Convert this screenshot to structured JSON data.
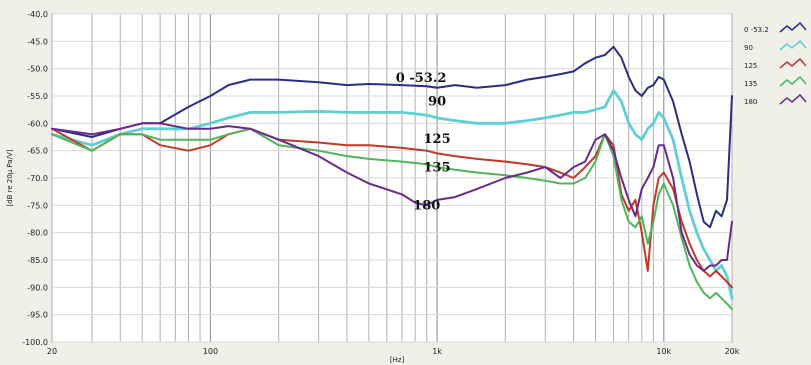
{
  "chart_data": {
    "type": "line",
    "xlabel": "[Hz]",
    "ylabel": "[dB re 20μ Pa/V]",
    "x_scale": "log",
    "xlim": [
      20,
      20000
    ],
    "ylim": [
      -100,
      -40
    ],
    "x_ticks": [
      {
        "value": 20,
        "label": "20"
      },
      {
        "value": 100,
        "label": "100"
      },
      {
        "value": 1000,
        "label": "1k"
      },
      {
        "value": 10000,
        "label": "10k"
      },
      {
        "value": 20000,
        "label": "20k"
      }
    ],
    "y_ticks": [
      {
        "value": -40,
        "label": "-40.0"
      },
      {
        "value": -45,
        "label": "-45.0"
      },
      {
        "value": -50,
        "label": "-50.0"
      },
      {
        "value": -55,
        "label": "-55.0"
      },
      {
        "value": -60,
        "label": "-60.0"
      },
      {
        "value": -65,
        "label": "-65.0"
      },
      {
        "value": -70,
        "label": "-70.0"
      },
      {
        "value": -75,
        "label": "-75.0"
      },
      {
        "value": -80,
        "label": "-80.0"
      },
      {
        "value": -85,
        "label": "-85.0"
      },
      {
        "value": -90,
        "label": "-90.0"
      },
      {
        "value": -95,
        "label": "-95.0"
      },
      {
        "value": -100,
        "label": "-100.0"
      }
    ],
    "grid": true,
    "legend_position": "right",
    "series": [
      {
        "name": "0 -53.2",
        "label": "0 -53.2",
        "label_at": [
          850,
          -53.2
        ],
        "color": "#2a2d86",
        "x": [
          20,
          30,
          40,
          50,
          60,
          80,
          100,
          120,
          150,
          200,
          300,
          400,
          500,
          700,
          900,
          1000,
          1200,
          1500,
          2000,
          2500,
          3000,
          3500,
          4000,
          4500,
          5000,
          5500,
          6000,
          6500,
          7000,
          7500,
          8000,
          8500,
          9000,
          9500,
          10000,
          11000,
          12000,
          13000,
          14000,
          15000,
          16000,
          17000,
          18000,
          19000,
          20000
        ],
        "y": [
          -61,
          -62.5,
          -61,
          -60,
          -60,
          -57,
          -55,
          -53,
          -52,
          -52,
          -52.5,
          -53,
          -52.8,
          -53,
          -53.2,
          -53.5,
          -53,
          -53.5,
          -53,
          -52,
          -51.5,
          -51,
          -50.5,
          -49,
          -48,
          -47.5,
          -46,
          -48,
          -51.5,
          -54,
          -55,
          -53.5,
          -53,
          -51.5,
          -52,
          -56,
          -62,
          -67,
          -73,
          -78,
          -79,
          -76,
          -77,
          -74,
          -55
        ]
      },
      {
        "name": "90",
        "label": "90",
        "label_at": [
          1000,
          -57.5
        ],
        "color": "#5fcfd3",
        "x": [
          20,
          30,
          40,
          50,
          60,
          80,
          100,
          120,
          150,
          200,
          300,
          400,
          500,
          700,
          900,
          1000,
          1200,
          1500,
          2000,
          2500,
          3000,
          3500,
          4000,
          4500,
          5000,
          5500,
          6000,
          6500,
          7000,
          7500,
          8000,
          8500,
          9000,
          9500,
          10000,
          11000,
          12000,
          13000,
          14000,
          15000,
          16000,
          17000,
          18000,
          19000,
          20000
        ],
        "y": [
          -62,
          -64,
          -62,
          -61,
          -61,
          -61,
          -60,
          -59,
          -58,
          -58,
          -57.8,
          -58,
          -58,
          -58,
          -58.5,
          -59,
          -59.5,
          -60,
          -60,
          -59.5,
          -59,
          -58.5,
          -58,
          -58,
          -57.5,
          -57,
          -54,
          -56,
          -60,
          -62,
          -63,
          -61,
          -60,
          -58,
          -59,
          -63,
          -70,
          -76,
          -80,
          -83,
          -85,
          -87,
          -86,
          -88,
          -92
        ]
      },
      {
        "name": "125",
        "label": "125",
        "label_at": [
          1000,
          -64.3
        ],
        "color": "#c0392b",
        "x": [
          20,
          30,
          40,
          50,
          60,
          80,
          100,
          120,
          150,
          200,
          300,
          400,
          500,
          700,
          900,
          1000,
          1200,
          1500,
          2000,
          2500,
          3000,
          3500,
          4000,
          4500,
          5000,
          5500,
          6000,
          6500,
          7000,
          7500,
          8000,
          8500,
          9000,
          9500,
          10000,
          11000,
          12000,
          13000,
          14000,
          15000,
          16000,
          17000,
          18000,
          19000,
          20000
        ],
        "y": [
          -61,
          -65,
          -62,
          -62,
          -64,
          -65,
          -64,
          -62,
          -61,
          -63,
          -63.5,
          -64,
          -64,
          -64.5,
          -65,
          -65.5,
          -66,
          -66.5,
          -67,
          -67.5,
          -68,
          -69,
          -70,
          -68,
          -66,
          -62,
          -64,
          -73,
          -76,
          -74,
          -80,
          -87,
          -75,
          -70,
          -69,
          -72,
          -78,
          -82,
          -85,
          -87,
          -88,
          -87,
          -88,
          -89,
          -90
        ]
      },
      {
        "name": "135",
        "label": "135",
        "label_at": [
          1000,
          -69.5
        ],
        "color": "#52b55c",
        "x": [
          20,
          30,
          40,
          50,
          60,
          80,
          100,
          120,
          150,
          200,
          300,
          400,
          500,
          700,
          900,
          1000,
          1200,
          1500,
          2000,
          2500,
          3000,
          3500,
          4000,
          4500,
          5000,
          5500,
          6000,
          6500,
          7000,
          7500,
          8000,
          8500,
          9000,
          9500,
          10000,
          11000,
          12000,
          13000,
          14000,
          15000,
          16000,
          17000,
          18000,
          19000,
          20000
        ],
        "y": [
          -62,
          -65,
          -62,
          -62,
          -63,
          -63,
          -63,
          -62,
          -61,
          -64,
          -65,
          -66,
          -66.5,
          -67,
          -67.5,
          -68,
          -68.5,
          -69,
          -69.5,
          -70,
          -70.5,
          -71,
          -71,
          -70,
          -67,
          -62,
          -66,
          -74,
          -78,
          -79,
          -77,
          -82,
          -78,
          -73,
          -71,
          -75,
          -81,
          -86,
          -89,
          -91,
          -92,
          -91,
          -92,
          -93,
          -94
        ]
      },
      {
        "name": "180",
        "label": "180",
        "label_at": [
          900,
          -76.5
        ],
        "color": "#6a2b8a",
        "x": [
          20,
          30,
          40,
          50,
          60,
          80,
          100,
          120,
          150,
          200,
          300,
          400,
          500,
          700,
          800,
          900,
          1000,
          1200,
          1500,
          2000,
          2500,
          3000,
          3500,
          4000,
          4500,
          5000,
          5500,
          6000,
          6500,
          7000,
          7500,
          8000,
          8500,
          9000,
          9500,
          10000,
          11000,
          12000,
          13000,
          14000,
          15000,
          16000,
          17000,
          18000,
          19000,
          20000
        ],
        "y": [
          -61,
          -62,
          -61,
          -60,
          -60,
          -61,
          -61,
          -60.5,
          -61,
          -63,
          -66,
          -69,
          -71,
          -73,
          -74.5,
          -75,
          -74,
          -73.5,
          -72,
          -70,
          -69,
          -68,
          -70,
          -68,
          -67,
          -63,
          -62,
          -65,
          -70,
          -74,
          -77,
          -72,
          -70,
          -68,
          -64,
          -64,
          -70,
          -80,
          -84,
          -86,
          -87,
          -86,
          -86,
          -85,
          -85,
          -78
        ]
      }
    ]
  }
}
